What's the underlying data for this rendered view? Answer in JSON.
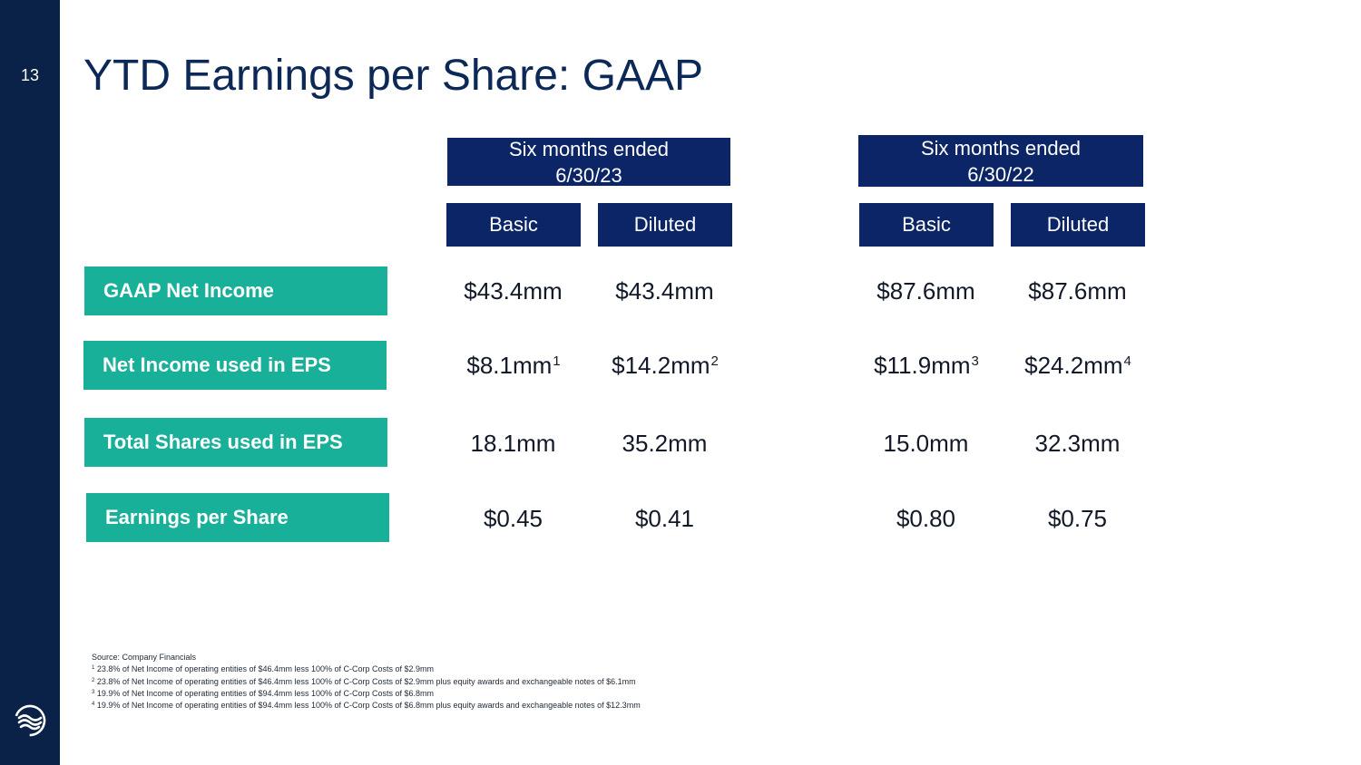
{
  "slide": {
    "page_number": "13",
    "title": "YTD Earnings per Share: GAAP",
    "logo_icon": "company-logo-icon"
  },
  "colors": {
    "sidebar": "#0a2247",
    "header_fill": "#0b2566",
    "label_fill": "#19b09a",
    "title_text": "#0b2856"
  },
  "periods": [
    {
      "line1": "Six months ended",
      "line2": "6/30/23"
    },
    {
      "line1": "Six months ended",
      "line2": "6/30/22"
    }
  ],
  "columns": [
    "Basic",
    "Diluted",
    "Basic",
    "Diluted"
  ],
  "rows": [
    {
      "label": "GAAP Net Income",
      "cells": [
        {
          "value": "$43.4mm",
          "note": ""
        },
        {
          "value": "$43.4mm",
          "note": ""
        },
        {
          "value": "$87.6mm",
          "note": ""
        },
        {
          "value": "$87.6mm",
          "note": ""
        }
      ]
    },
    {
      "label": "Net Income used in EPS",
      "cells": [
        {
          "value": "$8.1mm",
          "note": "1"
        },
        {
          "value": "$14.2mm",
          "note": "2"
        },
        {
          "value": "$11.9mm",
          "note": "3"
        },
        {
          "value": "$24.2mm",
          "note": "4"
        }
      ]
    },
    {
      "label": "Total Shares used in EPS",
      "cells": [
        {
          "value": "18.1mm",
          "note": ""
        },
        {
          "value": "35.2mm",
          "note": ""
        },
        {
          "value": "15.0mm",
          "note": ""
        },
        {
          "value": "32.3mm",
          "note": ""
        }
      ]
    },
    {
      "label": "Earnings per Share",
      "cells": [
        {
          "value": "$0.45",
          "note": ""
        },
        {
          "value": "$0.41",
          "note": ""
        },
        {
          "value": "$0.80",
          "note": ""
        },
        {
          "value": "$0.75",
          "note": ""
        }
      ]
    }
  ],
  "footnotes": {
    "source": "Source: Company Financials",
    "notes": [
      {
        "mark": "1",
        "text": "23.8% of Net Income of operating entities of $46.4mm less 100% of C-Corp Costs of $2.9mm"
      },
      {
        "mark": "2",
        "text": "23.8% of Net Income of operating entities of $46.4mm less 100% of C-Corp Costs of $2.9mm plus equity awards and exchangeable notes of $6.1mm"
      },
      {
        "mark": "3",
        "text": "19.9% of Net Income of operating entities of $94.4mm less 100% of C-Corp Costs of $6.8mm"
      },
      {
        "mark": "4",
        "text": "19.9% of Net Income of operating entities of $94.4mm less 100% of C-Corp Costs of $6.8mm plus equity awards and exchangeable notes of $12.3mm"
      }
    ]
  }
}
